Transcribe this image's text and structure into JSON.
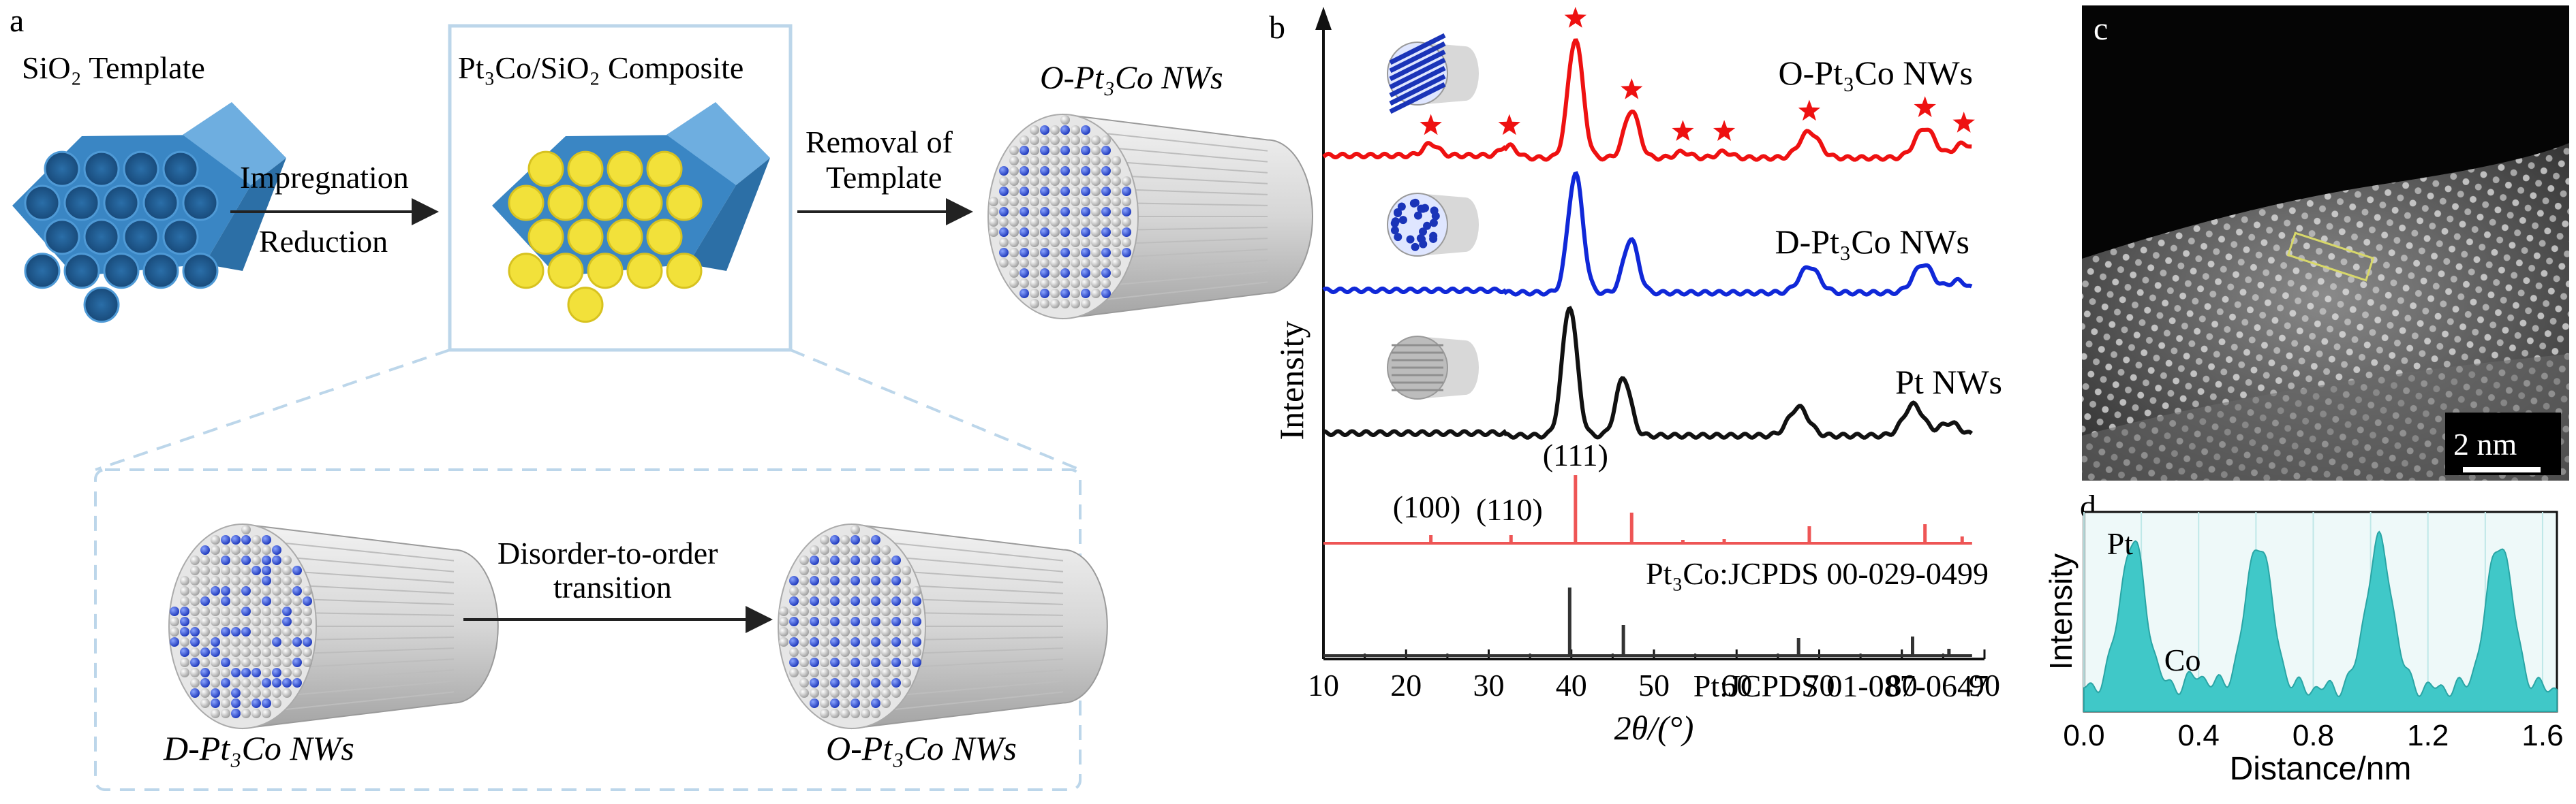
{
  "panel_a": {
    "letter": "a",
    "sio2_template": "SiO₂ Template",
    "composite": "Pt₃Co/SiO₂ Composite",
    "o_nws_top": "O-Pt₃Co NWs",
    "impregnation": "Impregnation",
    "reduction": "Reduction",
    "removal_of": "Removal of",
    "template": "Template",
    "disorder_to_order": "Disorder-to-order",
    "transition": "transition",
    "d_nws_bottom": "D-Pt₃Co NWs",
    "o_nws_bottom": "O-Pt₃Co NWs"
  },
  "panel_c": {
    "letter": "c",
    "scale_bar": "2 nm"
  },
  "chart_data": [
    {
      "panel": "b",
      "type": "line",
      "xlabel": "2θ/(°)",
      "ylabel": "Intensity",
      "xlim": [
        10,
        90
      ],
      "x_ticks": [
        "10",
        "20",
        "30",
        "40",
        "50",
        "60",
        "70",
        "80",
        "90"
      ],
      "series": [
        {
          "name": "O-Pt₃Co NWs",
          "color": "#ee1111",
          "peaks": [
            [
              23,
              0.1
            ],
            [
              32.5,
              0.1
            ],
            [
              40.5,
              1.0
            ],
            [
              47.3,
              0.4
            ],
            [
              53.5,
              0.05
            ],
            [
              58.5,
              0.05
            ],
            [
              68.8,
              0.22
            ],
            [
              82.8,
              0.25
            ],
            [
              87.5,
              0.12
            ]
          ],
          "star_positions": [
            23,
            32.5,
            40.5,
            47.3,
            53.5,
            58.5,
            68.8,
            82.8,
            87.5
          ]
        },
        {
          "name": "D-Pt₃Co NWs",
          "color": "#1028d8",
          "peaks": [
            [
              40.5,
              1.0
            ],
            [
              47.2,
              0.45
            ],
            [
              68.8,
              0.22
            ],
            [
              82.6,
              0.24
            ],
            [
              86.8,
              0.1
            ]
          ]
        },
        {
          "name": "Pt NWs",
          "color": "#111111",
          "peaks": [
            [
              39.8,
              1.0
            ],
            [
              46.3,
              0.45
            ],
            [
              67.5,
              0.22
            ],
            [
              81.4,
              0.24
            ],
            [
              85.8,
              0.1
            ]
          ]
        }
      ],
      "reference_patterns": [
        {
          "name": "Pt₃Co:JCPDS 00-029-0499",
          "color": "#ee5555",
          "lines": [
            [
              23.0,
              0.12
            ],
            [
              32.7,
              0.12
            ],
            [
              40.5,
              1.0
            ],
            [
              47.3,
              0.45
            ],
            [
              53.5,
              0.05
            ],
            [
              58.5,
              0.06
            ],
            [
              68.8,
              0.25
            ],
            [
              82.8,
              0.28
            ],
            [
              87.3,
              0.1
            ]
          ]
        },
        {
          "name": "Pt:JCPDS 01-087-0647",
          "color": "#333333",
          "lines": [
            [
              39.8,
              1.0
            ],
            [
              46.3,
              0.45
            ],
            [
              67.5,
              0.26
            ],
            [
              81.3,
              0.28
            ],
            [
              85.7,
              0.1
            ]
          ]
        }
      ],
      "annotations": [
        "(100)",
        "(110)",
        "(111)"
      ]
    },
    {
      "panel": "d",
      "type": "area",
      "xlabel": "Distance/nm",
      "ylabel": "Intensity",
      "xlim": [
        0.0,
        1.65
      ],
      "x_ticks": [
        "0.0",
        "0.4",
        "0.8",
        "1.2",
        "1.6"
      ],
      "color": "#40c8c8",
      "peak_centers": [
        0.17,
        0.61,
        1.03,
        1.45
      ],
      "annotations": [
        "Pt",
        "Co"
      ]
    }
  ]
}
